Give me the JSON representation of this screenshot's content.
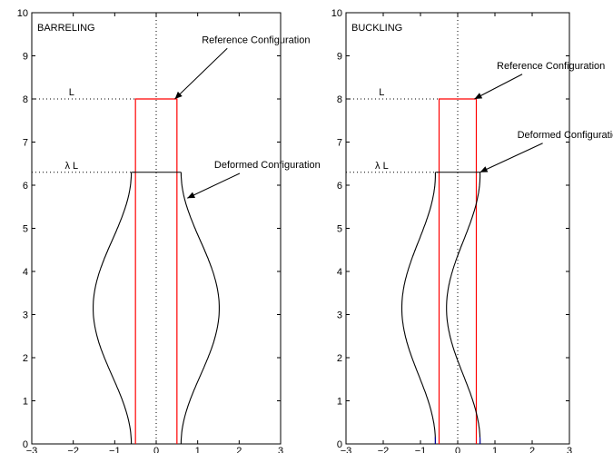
{
  "colors": {
    "reference": "#ff0000",
    "deformed": "#000000",
    "buckling_left_base": "#0000aa"
  },
  "chart_data": [
    {
      "type": "line",
      "title": "",
      "panel_label": "BARRELING",
      "xlim": [
        -3,
        3
      ],
      "ylim": [
        0,
        10
      ],
      "xticks": [
        -3,
        -2,
        -1,
        0,
        1,
        2,
        3
      ],
      "yticks": [
        0,
        1,
        2,
        3,
        4,
        5,
        6,
        7,
        8,
        9,
        10
      ],
      "grid": false,
      "level_labels": [
        {
          "text": "L",
          "y": 8
        },
        {
          "text": "λ L",
          "y": 6.3
        }
      ],
      "annotations": [
        {
          "text": "Reference Configuration",
          "tip": [
            0.45,
            8.0
          ],
          "label_at": [
            1.1,
            9.3
          ]
        },
        {
          "text": "Deformed Configuration",
          "tip": [
            0.75,
            5.7
          ],
          "label_at": [
            1.4,
            6.4
          ]
        }
      ],
      "reference": {
        "x": [
          -0.5,
          -0.5,
          0.5,
          0.5
        ],
        "y": [
          0,
          8,
          8,
          0
        ]
      },
      "deformed": {
        "mode": "barreling",
        "height": 6.3,
        "half_width_end": 0.6,
        "half_width_mid": 1.52
      }
    },
    {
      "type": "line",
      "title": "",
      "panel_label": "BUCKLING",
      "xlim": [
        -3,
        3
      ],
      "ylim": [
        0,
        10
      ],
      "xticks": [
        -3,
        -2,
        -1,
        0,
        1,
        2,
        3
      ],
      "yticks": [
        0,
        1,
        2,
        3,
        4,
        5,
        6,
        7,
        8,
        9,
        10
      ],
      "grid": false,
      "level_labels": [
        {
          "text": "L",
          "y": 8
        },
        {
          "text": "λ L",
          "y": 6.3
        }
      ],
      "annotations": [
        {
          "text": "Reference Configuration",
          "tip": [
            0.45,
            8.0
          ],
          "label_at": [
            1.05,
            8.7
          ]
        },
        {
          "text": "Deformed Configuration",
          "tip": [
            0.6,
            6.3
          ],
          "label_at": [
            1.6,
            7.1
          ]
        }
      ],
      "reference": {
        "x": [
          -0.5,
          -0.5,
          0.5,
          0.5
        ],
        "y": [
          0,
          8,
          8,
          0
        ]
      },
      "deformed": {
        "mode": "buckling",
        "height": 6.3,
        "half_width": 0.6,
        "amplitude": 0.95
      }
    }
  ]
}
